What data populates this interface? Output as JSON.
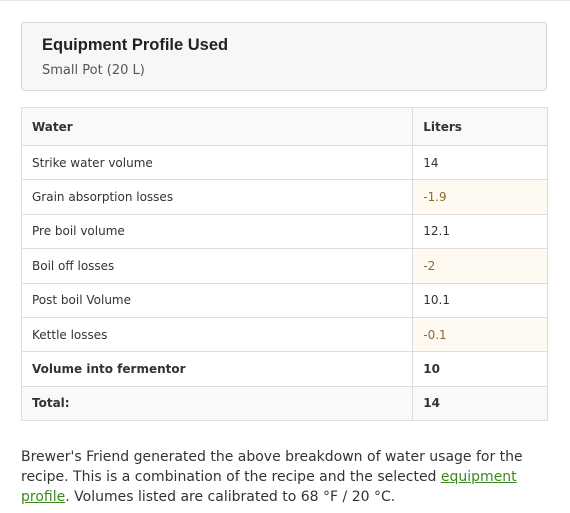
{
  "equipment": {
    "title": "Equipment Profile Used",
    "profile_name": "Small Pot (20 L)"
  },
  "water_table": {
    "columns": [
      "Water",
      "Liters"
    ],
    "rows": [
      {
        "label": "Strike water volume",
        "value": "14"
      },
      {
        "label": "Grain absorption losses",
        "value": "-1.9"
      },
      {
        "label": "Pre boil volume",
        "value": "12.1"
      },
      {
        "label": "Boil off losses",
        "value": "-2"
      },
      {
        "label": "Post boil Volume",
        "value": "10.1"
      },
      {
        "label": "Kettle losses",
        "value": "-0.1"
      },
      {
        "label": "Volume into fermentor",
        "value": "10"
      },
      {
        "label": "Total:",
        "value": "14"
      }
    ]
  },
  "note": {
    "before_link": "Brewer's Friend generated the above breakdown of water usage for the recipe. This is a combination of the recipe and the selected ",
    "link_text": "equipment profile",
    "after_link": ". Volumes listed are calibrated to 68 °F / 20 °C."
  },
  "colors": {
    "link": "#3a8a1f",
    "loss_highlight": "#fffaf1"
  }
}
